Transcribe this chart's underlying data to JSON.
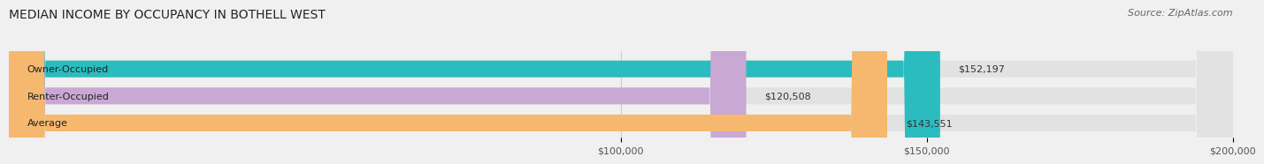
{
  "title": "MEDIAN INCOME BY OCCUPANCY IN BOTHELL WEST",
  "source": "Source: ZipAtlas.com",
  "categories": [
    "Owner-Occupied",
    "Renter-Occupied",
    "Average"
  ],
  "values": [
    152197,
    120508,
    143551
  ],
  "bar_colors": [
    "#2bbcbf",
    "#c9a8d4",
    "#f5b86e"
  ],
  "bar_labels": [
    "$152,197",
    "$120,508",
    "$143,551"
  ],
  "xlim": [
    0,
    200000
  ],
  "xticks": [
    100000,
    150000,
    200000
  ],
  "xtick_labels": [
    "$100,000",
    "$150,000",
    "$200,000"
  ],
  "background_color": "#f0f0f0",
  "bar_background_color": "#e2e2e2",
  "title_fontsize": 10,
  "label_fontsize": 8,
  "tick_fontsize": 8,
  "source_fontsize": 8
}
